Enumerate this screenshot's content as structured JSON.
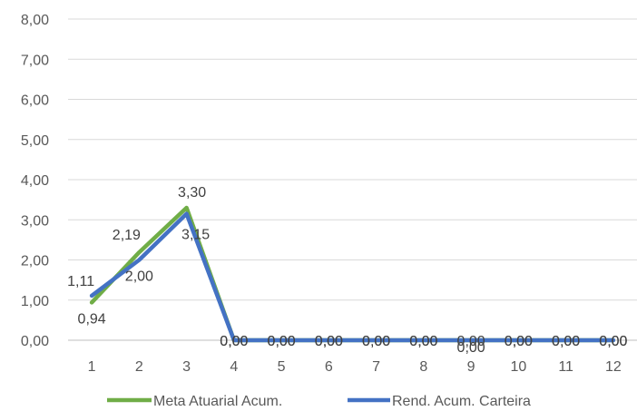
{
  "chart_data": {
    "type": "line",
    "title": "",
    "xlabel": "",
    "ylabel": "",
    "categories": [
      "1",
      "2",
      "3",
      "4",
      "5",
      "6",
      "7",
      "8",
      "9",
      "10",
      "11",
      "12"
    ],
    "ylim": [
      0,
      8
    ],
    "yticks": [
      "0,00",
      "1,00",
      "2,00",
      "3,00",
      "4,00",
      "5,00",
      "6,00",
      "7,00",
      "8,00"
    ],
    "grid": true,
    "legend_position": "bottom",
    "series": [
      {
        "name": "Meta Atuarial Acum.",
        "color": "#70AD47",
        "values": [
          0.94,
          2.19,
          3.3,
          0,
          0,
          0,
          0,
          0,
          0,
          0,
          0,
          0
        ],
        "labels": [
          "0,94",
          "2,19",
          "3,30",
          "0,00",
          "0,00",
          "0,00",
          "0,00",
          "0,00",
          "0,00",
          "0,00",
          "0,00",
          "0,00"
        ]
      },
      {
        "name": "Rend. Acum. Carteira",
        "color": "#4472C4",
        "values": [
          1.11,
          2.0,
          3.15,
          0,
          0,
          0,
          0,
          0,
          0,
          0,
          0,
          0
        ],
        "labels": [
          "1,11",
          "2,00",
          "3,15",
          "0,00",
          "0,00",
          "0,00",
          "0,00",
          "0,00",
          "0,00",
          "0,00",
          "0,00",
          "0,00"
        ]
      }
    ]
  }
}
